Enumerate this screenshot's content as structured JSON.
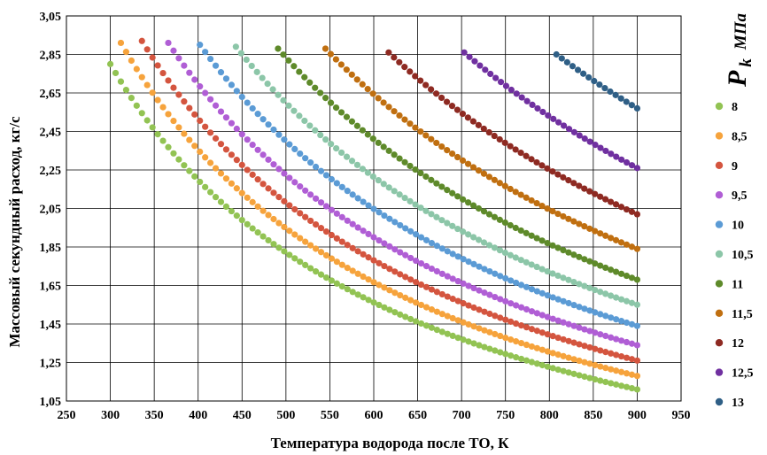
{
  "chart_data": {
    "type": "scatter",
    "xlabel": "Температура водорода после ТО, К",
    "ylabel": "Массовый секундный расход, кг/с",
    "xlim": [
      250,
      950
    ],
    "ylim": [
      1.05,
      3.05
    ],
    "x_ticks": [
      "250",
      "300",
      "350",
      "400",
      "450",
      "500",
      "550",
      "600",
      "650",
      "700",
      "750",
      "800",
      "850",
      "900",
      "950"
    ],
    "y_ticks": [
      "1,05",
      "1,25",
      "1,45",
      "1,65",
      "1,85",
      "2,05",
      "2,25",
      "2,45",
      "2,65",
      "2,85",
      "3,05"
    ],
    "grid": true,
    "legend_position": "right",
    "legend_title": {
      "main": "P",
      "sub": "k",
      "unit": "МПа"
    },
    "x_end": 900,
    "point_step": 6,
    "series": [
      {
        "name": "8",
        "color": "#92C353",
        "x_start": 300,
        "y_start": 2.8,
        "y_end": 1.11
      },
      {
        "name": "8,5",
        "color": "#F6A33C",
        "x_start": 312,
        "y_start": 2.91,
        "y_end": 1.18
      },
      {
        "name": "9",
        "color": "#D4553F",
        "x_start": 336,
        "y_start": 2.92,
        "y_end": 1.26
      },
      {
        "name": "9,5",
        "color": "#B05ED5",
        "x_start": 366,
        "y_start": 2.91,
        "y_end": 1.34
      },
      {
        "name": "10",
        "color": "#5B9BD5",
        "x_start": 402,
        "y_start": 2.9,
        "y_end": 1.44
      },
      {
        "name": "10,5",
        "color": "#8CC6A8",
        "x_start": 443,
        "y_start": 2.89,
        "y_end": 1.55
      },
      {
        "name": "11",
        "color": "#5E8A2A",
        "x_start": 491,
        "y_start": 2.88,
        "y_end": 1.68
      },
      {
        "name": "11,5",
        "color": "#C06F10",
        "x_start": 545,
        "y_start": 2.88,
        "y_end": 1.84
      },
      {
        "name": "12",
        "color": "#8E2A22",
        "x_start": 617,
        "y_start": 2.86,
        "y_end": 2.02
      },
      {
        "name": "12,5",
        "color": "#7030A0",
        "x_start": 703,
        "y_start": 2.86,
        "y_end": 2.26
      },
      {
        "name": "13",
        "color": "#2F5F86",
        "x_start": 808,
        "y_start": 2.85,
        "y_end": 2.57
      }
    ]
  }
}
